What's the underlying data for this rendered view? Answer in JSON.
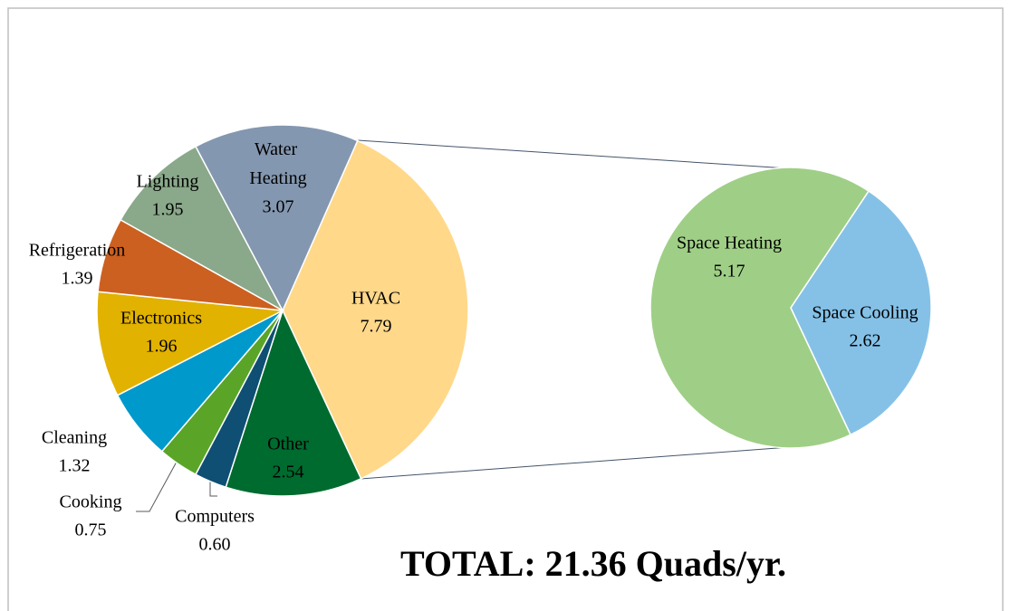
{
  "chart_data": {
    "type": "pie-of-pie",
    "categories": [
      "HVAC",
      "Other",
      "Computers",
      "Cooking",
      "Cleaning",
      "Electronics",
      "Refrigeration",
      "Lighting",
      "Water Heating"
    ],
    "values": [
      7.79,
      2.54,
      0.6,
      0.75,
      1.32,
      1.96,
      1.39,
      1.95,
      3.07
    ],
    "value_labels": [
      "7.79",
      "2.54",
      "0.60",
      "0.75",
      "1.32",
      "1.96",
      "1.39",
      "1.95",
      "3.07"
    ],
    "colors": [
      "#ffd88a",
      "#006b2f",
      "#0e4f73",
      "#5aa527",
      "#0099cc",
      "#e2b200",
      "#cc6020",
      "#8aa88a",
      "#8497b0"
    ],
    "secondary": {
      "categories": [
        "Space Heating",
        "Space Cooling"
      ],
      "values": [
        5.17,
        2.62
      ],
      "value_labels": [
        "5.17",
        "2.62"
      ],
      "colors": [
        "#9fcf86",
        "#85c1e7"
      ]
    },
    "annotation": "TOTAL: 21.36 Quads/yr."
  }
}
